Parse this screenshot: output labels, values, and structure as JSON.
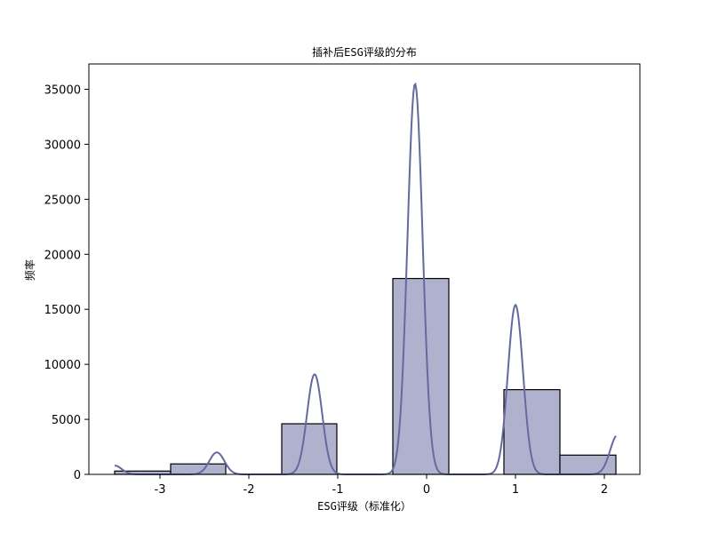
{
  "chart_data": {
    "type": "bar",
    "title": "插补后ESG评级的分布",
    "xlabel": "ESG评级（标准化）",
    "ylabel": "频率",
    "xlim": [
      -3.8,
      2.4
    ],
    "ylim": [
      0,
      37300
    ],
    "xticks": [
      "-3",
      "-2",
      "-1",
      "0",
      "1",
      "2"
    ],
    "xtick_values": [
      -3,
      -2,
      -1,
      0,
      1,
      2
    ],
    "yticks": [
      "0",
      "5000",
      "10000",
      "15000",
      "20000",
      "25000",
      "30000",
      "35000"
    ],
    "ytick_values": [
      0,
      5000,
      10000,
      15000,
      20000,
      25000,
      30000,
      35000
    ],
    "bins": [
      {
        "x0": -3.51,
        "x1": -2.88,
        "value": 300
      },
      {
        "x0": -2.88,
        "x1": -2.26,
        "value": 950
      },
      {
        "x0": -2.26,
        "x1": -1.63,
        "value": 0
      },
      {
        "x0": -1.63,
        "x1": -1.01,
        "value": 4600
      },
      {
        "x0": -1.01,
        "x1": -0.38,
        "value": 0
      },
      {
        "x0": -0.38,
        "x1": 0.25,
        "value": 17800
      },
      {
        "x0": 0.25,
        "x1": 0.87,
        "value": 0
      },
      {
        "x0": 0.87,
        "x1": 1.5,
        "value": 7700
      },
      {
        "x0": 1.5,
        "x1": 2.13,
        "value": 1750
      }
    ],
    "kde": {
      "name": "KDE",
      "x_range": [
        -3.51,
        2.13
      ],
      "peaks": [
        {
          "mu": -3.51,
          "sigma": 0.08,
          "height": 800
        },
        {
          "mu": -2.36,
          "sigma": 0.085,
          "height": 2000
        },
        {
          "mu": -1.26,
          "sigma": 0.085,
          "height": 9100
        },
        {
          "mu": -0.13,
          "sigma": 0.085,
          "height": 35500
        },
        {
          "mu": 1.0,
          "sigma": 0.085,
          "height": 15400
        },
        {
          "mu": 2.15,
          "sigma": 0.085,
          "height": 3600
        }
      ]
    },
    "colors": {
      "bar_fill": "#b0b2cd",
      "bar_edge": "#000000",
      "kde_line": "#646aa0"
    }
  }
}
